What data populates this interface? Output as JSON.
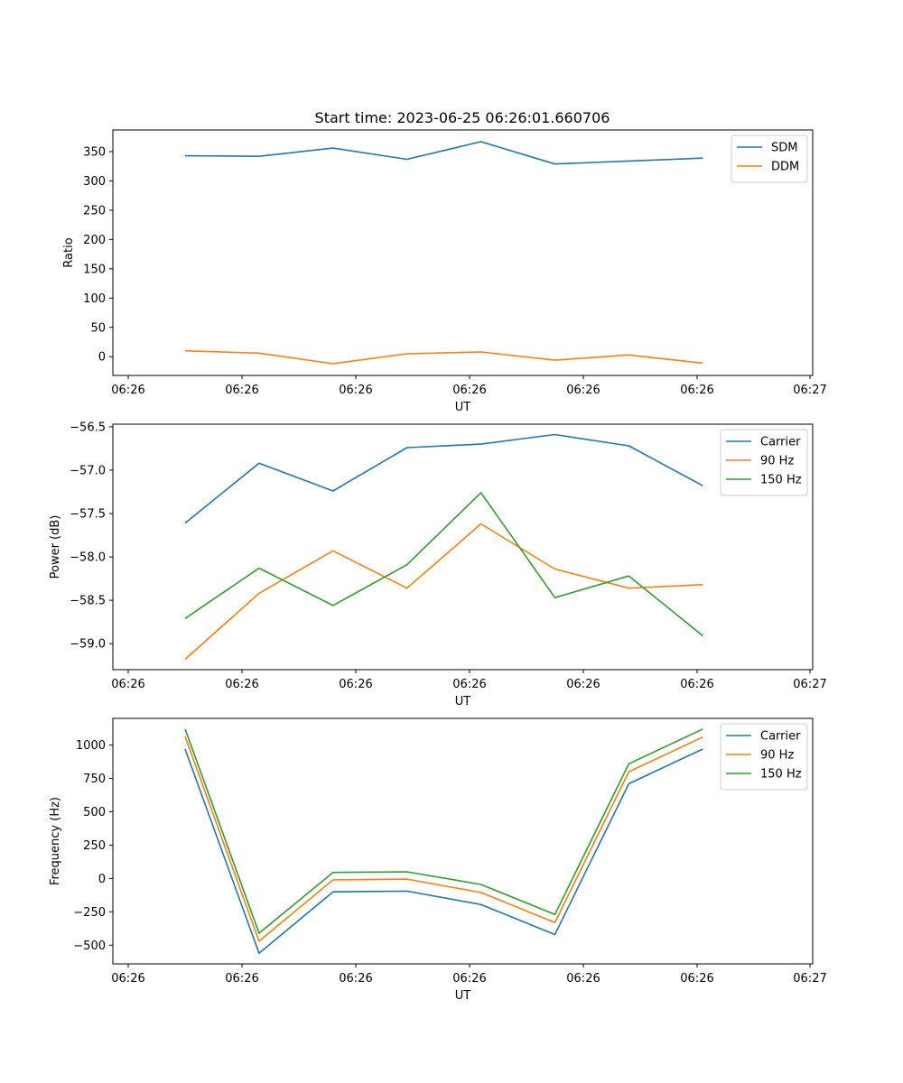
{
  "figure": {
    "title": "Start time: 2023-06-25 06:26:01.660706"
  },
  "chart_data": [
    {
      "type": "line",
      "title": "Start time: 2023-06-25 06:26:01.660706",
      "xlabel": "UT",
      "ylabel": "Ratio",
      "xlim": [
        0,
        6.1
      ],
      "ylim": [
        -32,
        387
      ],
      "xticks": [
        0,
        1,
        2,
        3,
        4,
        5,
        6
      ],
      "xtick_labels": [
        "06:26",
        "06:26",
        "06:26",
        "06:26",
        "06:26",
        "06:26",
        "06:27"
      ],
      "yticks": [
        0,
        50,
        100,
        150,
        200,
        250,
        300,
        350
      ],
      "ytick_labels": [
        "0",
        "50",
        "100",
        "150",
        "200",
        "250",
        "300",
        "350"
      ],
      "legend_position": "top-right",
      "grid": false,
      "x": [
        0.5,
        1.15,
        1.8,
        2.45,
        3.1,
        3.75,
        4.4,
        5.05
      ],
      "series": [
        {
          "name": "SDM",
          "color": "#1f77b4",
          "values": [
            343,
            342,
            356,
            337,
            367,
            329,
            334,
            339
          ]
        },
        {
          "name": "DDM",
          "color": "#ff7f0e",
          "values": [
            10,
            6,
            -12,
            5,
            8,
            -6,
            3,
            -11
          ]
        }
      ]
    },
    {
      "type": "line",
      "title": "",
      "xlabel": "UT",
      "ylabel": "Power (dB)",
      "xlim": [
        0,
        6.1
      ],
      "ylim": [
        -59.3,
        -56.47
      ],
      "xticks": [
        0,
        1,
        2,
        3,
        4,
        5,
        6
      ],
      "xtick_labels": [
        "06:26",
        "06:26",
        "06:26",
        "06:26",
        "06:26",
        "06:26",
        "06:27"
      ],
      "yticks": [
        -59.0,
        -58.5,
        -58.0,
        -57.5,
        -57.0,
        -56.5
      ],
      "ytick_labels": [
        "−59.0",
        "−58.5",
        "−58.0",
        "−57.5",
        "−57.0",
        "−56.5"
      ],
      "legend_position": "top-right",
      "grid": false,
      "x": [
        0.5,
        1.15,
        1.8,
        2.45,
        3.1,
        3.75,
        4.4,
        5.05
      ],
      "series": [
        {
          "name": "Carrier",
          "color": "#1f77b4",
          "values": [
            -57.61,
            -56.92,
            -57.24,
            -56.74,
            -56.7,
            -56.59,
            -56.72,
            -57.18
          ]
        },
        {
          "name": "90 Hz",
          "color": "#ff7f0e",
          "values": [
            -59.18,
            -58.42,
            -57.93,
            -58.36,
            -57.62,
            -58.14,
            -58.36,
            -58.32
          ]
        },
        {
          "name": "150 Hz",
          "color": "#2ca02c",
          "values": [
            -58.71,
            -58.13,
            -58.56,
            -58.09,
            -57.26,
            -58.47,
            -58.22,
            -58.91
          ]
        }
      ]
    },
    {
      "type": "line",
      "title": "",
      "xlabel": "UT",
      "ylabel": "Frequency (Hz)",
      "xlim": [
        0,
        6.1
      ],
      "ylim": [
        -640,
        1200
      ],
      "xticks": [
        0,
        1,
        2,
        3,
        4,
        5,
        6
      ],
      "xtick_labels": [
        "06:26",
        "06:26",
        "06:26",
        "06:26",
        "06:26",
        "06:26",
        "06:27"
      ],
      "yticks": [
        -500,
        -250,
        0,
        250,
        500,
        750,
        1000
      ],
      "ytick_labels": [
        "−500",
        "−250",
        "0",
        "250",
        "500",
        "750",
        "1000"
      ],
      "legend_position": "top-right",
      "grid": false,
      "x": [
        0.5,
        1.15,
        1.8,
        2.45,
        3.1,
        3.75,
        4.4,
        5.05
      ],
      "series": [
        {
          "name": "Carrier",
          "color": "#1f77b4",
          "values": [
            970,
            -560,
            -100,
            -95,
            -195,
            -420,
            710,
            970
          ]
        },
        {
          "name": "90 Hz",
          "color": "#ff7f0e",
          "values": [
            1065,
            -470,
            -10,
            -5,
            -105,
            -330,
            800,
            1060
          ]
        },
        {
          "name": "150 Hz",
          "color": "#2ca02c",
          "values": [
            1120,
            -410,
            45,
            50,
            -45,
            -270,
            860,
            1120
          ]
        }
      ]
    }
  ]
}
